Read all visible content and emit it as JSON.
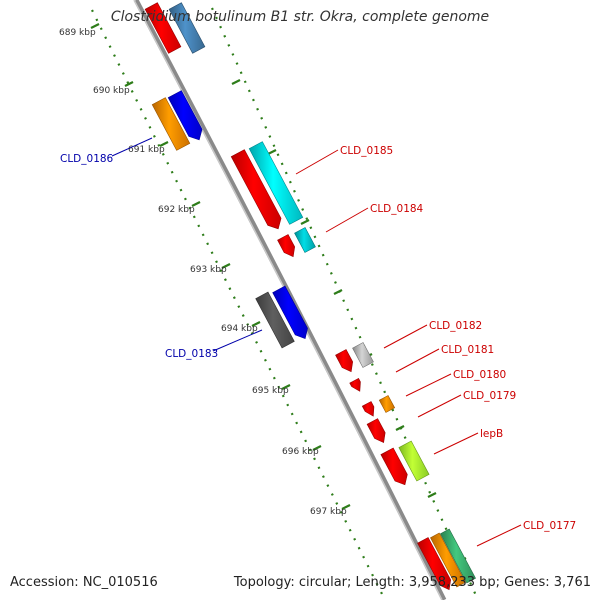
{
  "title": "Clostridium botulinum B1 str. Okra, complete genome",
  "accession": "Accession: NC_010516",
  "summary": "Topology: circular; Length: 3,958,233 bp; Genes: 3,761",
  "colors": {
    "backbone": "#8a8a8a",
    "ticks": "#2e7d1a",
    "forward_label": "#cc0000",
    "reverse_label": "#0000aa"
  },
  "ticks_inner": [
    {
      "label": "689 kbp"
    },
    {
      "label": "690 kbp"
    },
    {
      "label": "691 kbp"
    },
    {
      "label": "692 kbp"
    },
    {
      "label": "693 kbp"
    },
    {
      "label": "694 kbp"
    },
    {
      "label": "695 kbp"
    },
    {
      "label": "696 kbp"
    },
    {
      "label": "697 kbp"
    }
  ],
  "genes_reverse": [
    {
      "label": "",
      "color": "#ff0000"
    },
    {
      "label": "",
      "color": "#4682b4"
    },
    {
      "label": "",
      "color": "#ff8c00"
    },
    {
      "label": "CLD_0186",
      "color": "#0000ff"
    },
    {
      "label": "",
      "color": "#555555"
    },
    {
      "label": "CLD_0183",
      "color": "#0000ff"
    }
  ],
  "genes_forward": [
    {
      "label": "",
      "color": "#ff0000"
    },
    {
      "label": "CLD_0185",
      "color": "#00e5ee"
    },
    {
      "label": "",
      "color": "#ff0000"
    },
    {
      "label": "CLD_0184",
      "color": "#00c5cd"
    },
    {
      "label": "",
      "color": "#ff0000"
    },
    {
      "label": "CLD_0182",
      "color": "#bdbdbd"
    },
    {
      "label": "CLD_0181",
      "color": "#ff0000"
    },
    {
      "label": "CLD_0180",
      "color": "#ff0000"
    },
    {
      "label": "CLD_0179",
      "color": "#ff8c00"
    },
    {
      "label": "",
      "color": "#ff0000"
    },
    {
      "label": "",
      "color": "#ff0000"
    },
    {
      "label": "lepB",
      "color": "#adff2f"
    },
    {
      "label": "",
      "color": "#ff0000"
    },
    {
      "label": "",
      "color": "#ff8c00"
    },
    {
      "label": "CLD_0177",
      "color": "#3cb371"
    }
  ]
}
